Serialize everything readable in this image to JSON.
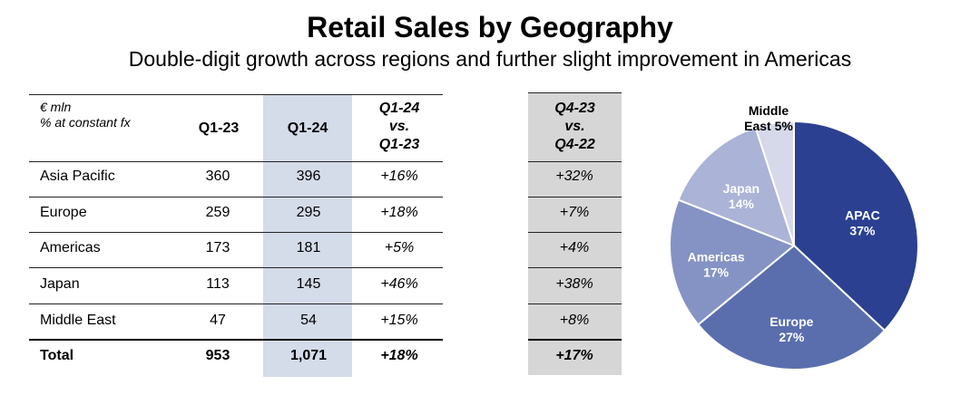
{
  "title": "Retail Sales by Geography",
  "subtitle": "Double-digit growth across regions and further slight improvement in Americas",
  "table": {
    "unit_line1": "€ mln",
    "unit_line2": "% at constant fx",
    "col_q123": "Q1-23",
    "col_q124": "Q1-24",
    "col_growth": [
      "Q1-24",
      "vs.",
      "Q1-23"
    ],
    "col_q4": [
      "Q4-23",
      "vs.",
      "Q4-22"
    ],
    "rows": [
      {
        "region": "Asia Pacific",
        "q123": "360",
        "q124": "396",
        "growth": "+16%",
        "q4": "+32%"
      },
      {
        "region": "Europe",
        "q123": "259",
        "q124": "295",
        "growth": "+18%",
        "q4": "+7%"
      },
      {
        "region": "Americas",
        "q123": "173",
        "q124": "181",
        "growth": "+5%",
        "q4": "+4%"
      },
      {
        "region": "Japan",
        "q123": "113",
        "q124": "145",
        "growth": "+46%",
        "q4": "+38%"
      },
      {
        "region": "Middle East",
        "q123": "47",
        "q124": "54",
        "growth": "+15%",
        "q4": "+8%"
      }
    ],
    "total": {
      "region": "Total",
      "q123": "953",
      "q124": "1,071",
      "growth": "+18%",
      "q4": "+17%"
    }
  },
  "chart_data": {
    "type": "pie",
    "slices": [
      {
        "label": [
          "APAC",
          "37%"
        ],
        "value": 37,
        "color": "#2b4090",
        "text_color": "#ffffff"
      },
      {
        "label": [
          "Europe",
          "27%"
        ],
        "value": 27,
        "color": "#5a6eae",
        "text_color": "#ffffff"
      },
      {
        "label": [
          "Americas",
          "17%"
        ],
        "value": 17,
        "color": "#8593c4",
        "text_color": "#ffffff"
      },
      {
        "label": [
          "Japan",
          "14%"
        ],
        "value": 14,
        "color": "#abb4d6",
        "text_color": "#ffffff"
      },
      {
        "label": [
          "Middle",
          "East 5%"
        ],
        "value": 5,
        "color": "#d5d9e9",
        "text_color": "#000000"
      }
    ]
  }
}
